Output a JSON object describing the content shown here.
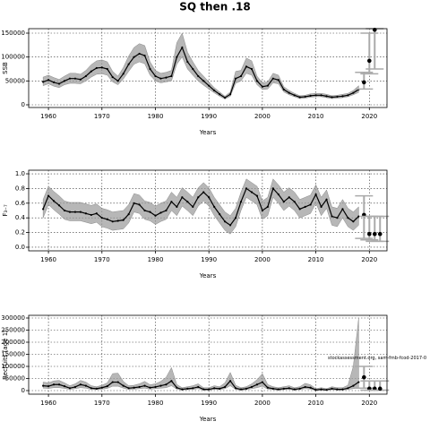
{
  "title": "SQ then .18",
  "chart_data": [
    {
      "type": "line",
      "ylabel": "SSB",
      "xlabel": "Years",
      "x": [
        1959,
        1960,
        1961,
        1962,
        1963,
        1964,
        1965,
        1966,
        1967,
        1968,
        1969,
        1970,
        1971,
        1972,
        1973,
        1974,
        1975,
        1976,
        1977,
        1978,
        1979,
        1980,
        1981,
        1982,
        1983,
        1984,
        1985,
        1986,
        1987,
        1988,
        1989,
        1990,
        1991,
        1992,
        1993,
        1994,
        1995,
        1996,
        1997,
        1998,
        1999,
        2000,
        2001,
        2002,
        2003,
        2004,
        2005,
        2006,
        2007,
        2008,
        2009,
        2010,
        2011,
        2012,
        2013,
        2014,
        2015,
        2016,
        2017,
        2018
      ],
      "values": [
        48000,
        52000,
        47000,
        44000,
        50000,
        55000,
        55000,
        53000,
        60000,
        70000,
        77000,
        78000,
        75000,
        58000,
        50000,
        65000,
        85000,
        100000,
        107000,
        103000,
        75000,
        60000,
        55000,
        57000,
        60000,
        100000,
        120000,
        90000,
        75000,
        60000,
        50000,
        40000,
        30000,
        22000,
        15000,
        22000,
        55000,
        60000,
        80000,
        75000,
        50000,
        38000,
        40000,
        55000,
        52000,
        32000,
        25000,
        20000,
        16000,
        17000,
        19000,
        20000,
        20000,
        18000,
        16000,
        17000,
        18000,
        20000,
        25000,
        32000
      ],
      "upper": [
        58000,
        62000,
        57000,
        53000,
        60000,
        66000,
        66000,
        64000,
        72000,
        84000,
        92000,
        94000,
        90000,
        70000,
        60000,
        78000,
        102000,
        120000,
        128000,
        124000,
        90000,
        72000,
        66000,
        68000,
        72000,
        130000,
        150000,
        110000,
        90000,
        72000,
        60000,
        48000,
        36000,
        27000,
        18000,
        27000,
        70000,
        72000,
        98000,
        92000,
        60000,
        46000,
        48000,
        66000,
        62000,
        38000,
        30000,
        24000,
        19000,
        20000,
        23000,
        24000,
        24000,
        22000,
        19000,
        20000,
        22000,
        24000,
        30000,
        40000
      ],
      "lower": [
        40000,
        44000,
        39000,
        36000,
        42000,
        45000,
        45000,
        44000,
        50000,
        58000,
        64000,
        65000,
        62000,
        48000,
        42000,
        54000,
        70000,
        85000,
        90000,
        86000,
        62000,
        50000,
        46000,
        48000,
        50000,
        85000,
        100000,
        75000,
        62000,
        50000,
        41000,
        33000,
        25000,
        18000,
        12000,
        18000,
        45000,
        50000,
        66000,
        62000,
        42000,
        32000,
        33000,
        46000,
        44000,
        27000,
        21000,
        17000,
        13000,
        14000,
        16000,
        17000,
        17000,
        15000,
        13000,
        14000,
        15000,
        17000,
        21000,
        26000
      ],
      "forecast": {
        "x": [
          2019,
          2020,
          2021
        ],
        "values": [
          47000,
          92000,
          157000
        ],
        "lower": [
          33000,
          65000,
          75000
        ],
        "upper": [
          68000,
          150000,
          160000
        ]
      },
      "xlim": [
        1956.3,
        2023.3
      ],
      "ylim": [
        -5625,
        159375
      ],
      "xticks": [
        1960,
        1970,
        1980,
        1990,
        2000,
        2010,
        2020
      ],
      "yticks": [
        0,
        50000,
        100000,
        150000
      ],
      "grid": true
    },
    {
      "type": "line",
      "ylabel": "F₃₋₇",
      "xlabel": "Years",
      "x": [
        1959,
        1960,
        1961,
        1962,
        1963,
        1964,
        1965,
        1966,
        1967,
        1968,
        1969,
        1970,
        1971,
        1972,
        1973,
        1974,
        1975,
        1976,
        1977,
        1978,
        1979,
        1980,
        1981,
        1982,
        1983,
        1984,
        1985,
        1986,
        1987,
        1988,
        1989,
        1990,
        1991,
        1992,
        1993,
        1994,
        1995,
        1996,
        1997,
        1998,
        1999,
        2000,
        2001,
        2002,
        2003,
        2004,
        2005,
        2006,
        2007,
        2008,
        2009,
        2010,
        2011,
        2012,
        2013,
        2014,
        2015,
        2016,
        2017,
        2018
      ],
      "values": [
        0.52,
        0.7,
        0.63,
        0.57,
        0.5,
        0.48,
        0.48,
        0.48,
        0.46,
        0.44,
        0.46,
        0.4,
        0.38,
        0.35,
        0.36,
        0.37,
        0.45,
        0.6,
        0.58,
        0.5,
        0.48,
        0.43,
        0.47,
        0.5,
        0.62,
        0.55,
        0.68,
        0.62,
        0.55,
        0.68,
        0.75,
        0.68,
        0.55,
        0.45,
        0.35,
        0.3,
        0.4,
        0.62,
        0.8,
        0.75,
        0.7,
        0.5,
        0.55,
        0.8,
        0.72,
        0.62,
        0.68,
        0.62,
        0.52,
        0.55,
        0.58,
        0.72,
        0.55,
        0.65,
        0.42,
        0.4,
        0.52,
        0.4,
        0.35,
        0.42
      ],
      "upper": [
        0.65,
        0.83,
        0.76,
        0.7,
        0.63,
        0.61,
        0.61,
        0.61,
        0.59,
        0.57,
        0.59,
        0.53,
        0.51,
        0.48,
        0.49,
        0.5,
        0.58,
        0.73,
        0.71,
        0.63,
        0.61,
        0.56,
        0.6,
        0.63,
        0.75,
        0.68,
        0.81,
        0.75,
        0.68,
        0.81,
        0.88,
        0.81,
        0.68,
        0.58,
        0.48,
        0.43,
        0.53,
        0.75,
        0.93,
        0.88,
        0.83,
        0.63,
        0.68,
        0.93,
        0.85,
        0.75,
        0.81,
        0.75,
        0.65,
        0.68,
        0.71,
        0.85,
        0.68,
        0.78,
        0.55,
        0.53,
        0.65,
        0.53,
        0.48,
        0.55
      ],
      "lower": [
        0.4,
        0.58,
        0.51,
        0.45,
        0.38,
        0.36,
        0.36,
        0.36,
        0.34,
        0.32,
        0.34,
        0.28,
        0.26,
        0.23,
        0.24,
        0.25,
        0.33,
        0.48,
        0.46,
        0.38,
        0.36,
        0.31,
        0.35,
        0.38,
        0.5,
        0.43,
        0.56,
        0.5,
        0.43,
        0.56,
        0.63,
        0.56,
        0.43,
        0.33,
        0.23,
        0.18,
        0.28,
        0.5,
        0.68,
        0.63,
        0.58,
        0.38,
        0.43,
        0.68,
        0.6,
        0.5,
        0.56,
        0.5,
        0.4,
        0.43,
        0.46,
        0.6,
        0.43,
        0.53,
        0.3,
        0.28,
        0.4,
        0.28,
        0.23,
        0.3
      ],
      "forecast": {
        "x": [
          2019,
          2020,
          2021,
          2022
        ],
        "values": [
          0.44,
          0.18,
          0.18,
          0.18
        ],
        "lower": [
          0.12,
          0.1,
          0.08,
          0.08
        ],
        "upper": [
          0.7,
          0.42,
          0.42,
          0.42
        ]
      },
      "xlim": [
        1956.3,
        2023.3
      ],
      "ylim": [
        -0.049,
        1.049
      ],
      "xticks": [
        1960,
        1970,
        1980,
        1990,
        2000,
        2010,
        2020
      ],
      "yticks": [
        {
          "value": 0,
          "label": "0.0"
        },
        0.2,
        0.4,
        0.6,
        0.8,
        {
          "value": 1,
          "label": "1.0"
        }
      ],
      "grid": true
    },
    {
      "type": "line",
      "ylabel": "Recruits (age 1)",
      "xlabel": "Years",
      "annotation": "stockassessment.org, sam-fmb-fcod-2017-0",
      "x": [
        1959,
        1960,
        1961,
        1962,
        1963,
        1964,
        1965,
        1966,
        1967,
        1968,
        1969,
        1970,
        1971,
        1972,
        1973,
        1974,
        1975,
        1976,
        1977,
        1978,
        1979,
        1980,
        1981,
        1982,
        1983,
        1984,
        1985,
        1986,
        1987,
        1988,
        1989,
        1990,
        1991,
        1992,
        1993,
        1994,
        1995,
        1996,
        1997,
        1998,
        1999,
        2000,
        2001,
        2002,
        2003,
        2004,
        2005,
        2006,
        2007,
        2008,
        2009,
        2010,
        2011,
        2012,
        2013,
        2014,
        2015,
        2016,
        2017,
        2018
      ],
      "values": [
        20000,
        18000,
        25000,
        25000,
        18000,
        10000,
        15000,
        25000,
        20000,
        10000,
        8000,
        12000,
        18000,
        35000,
        35000,
        20000,
        10000,
        12000,
        15000,
        20000,
        12000,
        15000,
        20000,
        25000,
        40000,
        12000,
        5000,
        8000,
        10000,
        15000,
        5000,
        5000,
        10000,
        8000,
        15000,
        40000,
        10000,
        5000,
        8000,
        15000,
        25000,
        35000,
        12000,
        8000,
        5000,
        8000,
        10000,
        5000,
        8000,
        15000,
        12000,
        3000,
        5000,
        3000,
        8000,
        5000,
        5000,
        10000,
        20000,
        35000
      ],
      "upper": [
        35000,
        32000,
        40000,
        42000,
        32000,
        20000,
        28000,
        42000,
        35000,
        20000,
        16000,
        22000,
        32000,
        70000,
        72000,
        38000,
        20000,
        22000,
        28000,
        38000,
        24000,
        28000,
        38000,
        55000,
        95000,
        25000,
        12000,
        16000,
        20000,
        28000,
        12000,
        12000,
        20000,
        16000,
        32000,
        75000,
        22000,
        12000,
        16000,
        28000,
        45000,
        70000,
        25000,
        16000,
        12000,
        16000,
        20000,
        12000,
        16000,
        30000,
        24000,
        8000,
        12000,
        8000,
        16000,
        12000,
        12000,
        22000,
        100000,
        300000
      ],
      "lower": [
        10000,
        9000,
        12000,
        12000,
        9000,
        5000,
        8000,
        12000,
        10000,
        5000,
        4000,
        6000,
        9000,
        18000,
        18000,
        10000,
        5000,
        6000,
        8000,
        10000,
        6000,
        8000,
        10000,
        12000,
        20000,
        6000,
        2000,
        4000,
        5000,
        8000,
        2000,
        2000,
        5000,
        4000,
        8000,
        20000,
        5000,
        2000,
        4000,
        8000,
        12000,
        18000,
        6000,
        4000,
        2000,
        4000,
        5000,
        2000,
        4000,
        8000,
        6000,
        1000,
        2000,
        1000,
        4000,
        2000,
        2000,
        5000,
        8000,
        10000
      ],
      "forecast": {
        "x": [
          2019,
          2020,
          2021,
          2022
        ],
        "values": [
          55000,
          8000,
          8000,
          8000
        ],
        "lower": [
          10000,
          2000,
          2000,
          2000
        ],
        "upper": [
          100000,
          40000,
          40000,
          40000
        ]
      },
      "xlim": [
        1956.3,
        2023.3
      ],
      "ylim": [
        -14815,
        311111
      ],
      "xticks": [
        1960,
        1970,
        1980,
        1990,
        2000,
        2010,
        2020
      ],
      "yticks": [
        0,
        50000,
        100000,
        150000,
        200000,
        250000,
        300000
      ],
      "grid": true
    }
  ]
}
